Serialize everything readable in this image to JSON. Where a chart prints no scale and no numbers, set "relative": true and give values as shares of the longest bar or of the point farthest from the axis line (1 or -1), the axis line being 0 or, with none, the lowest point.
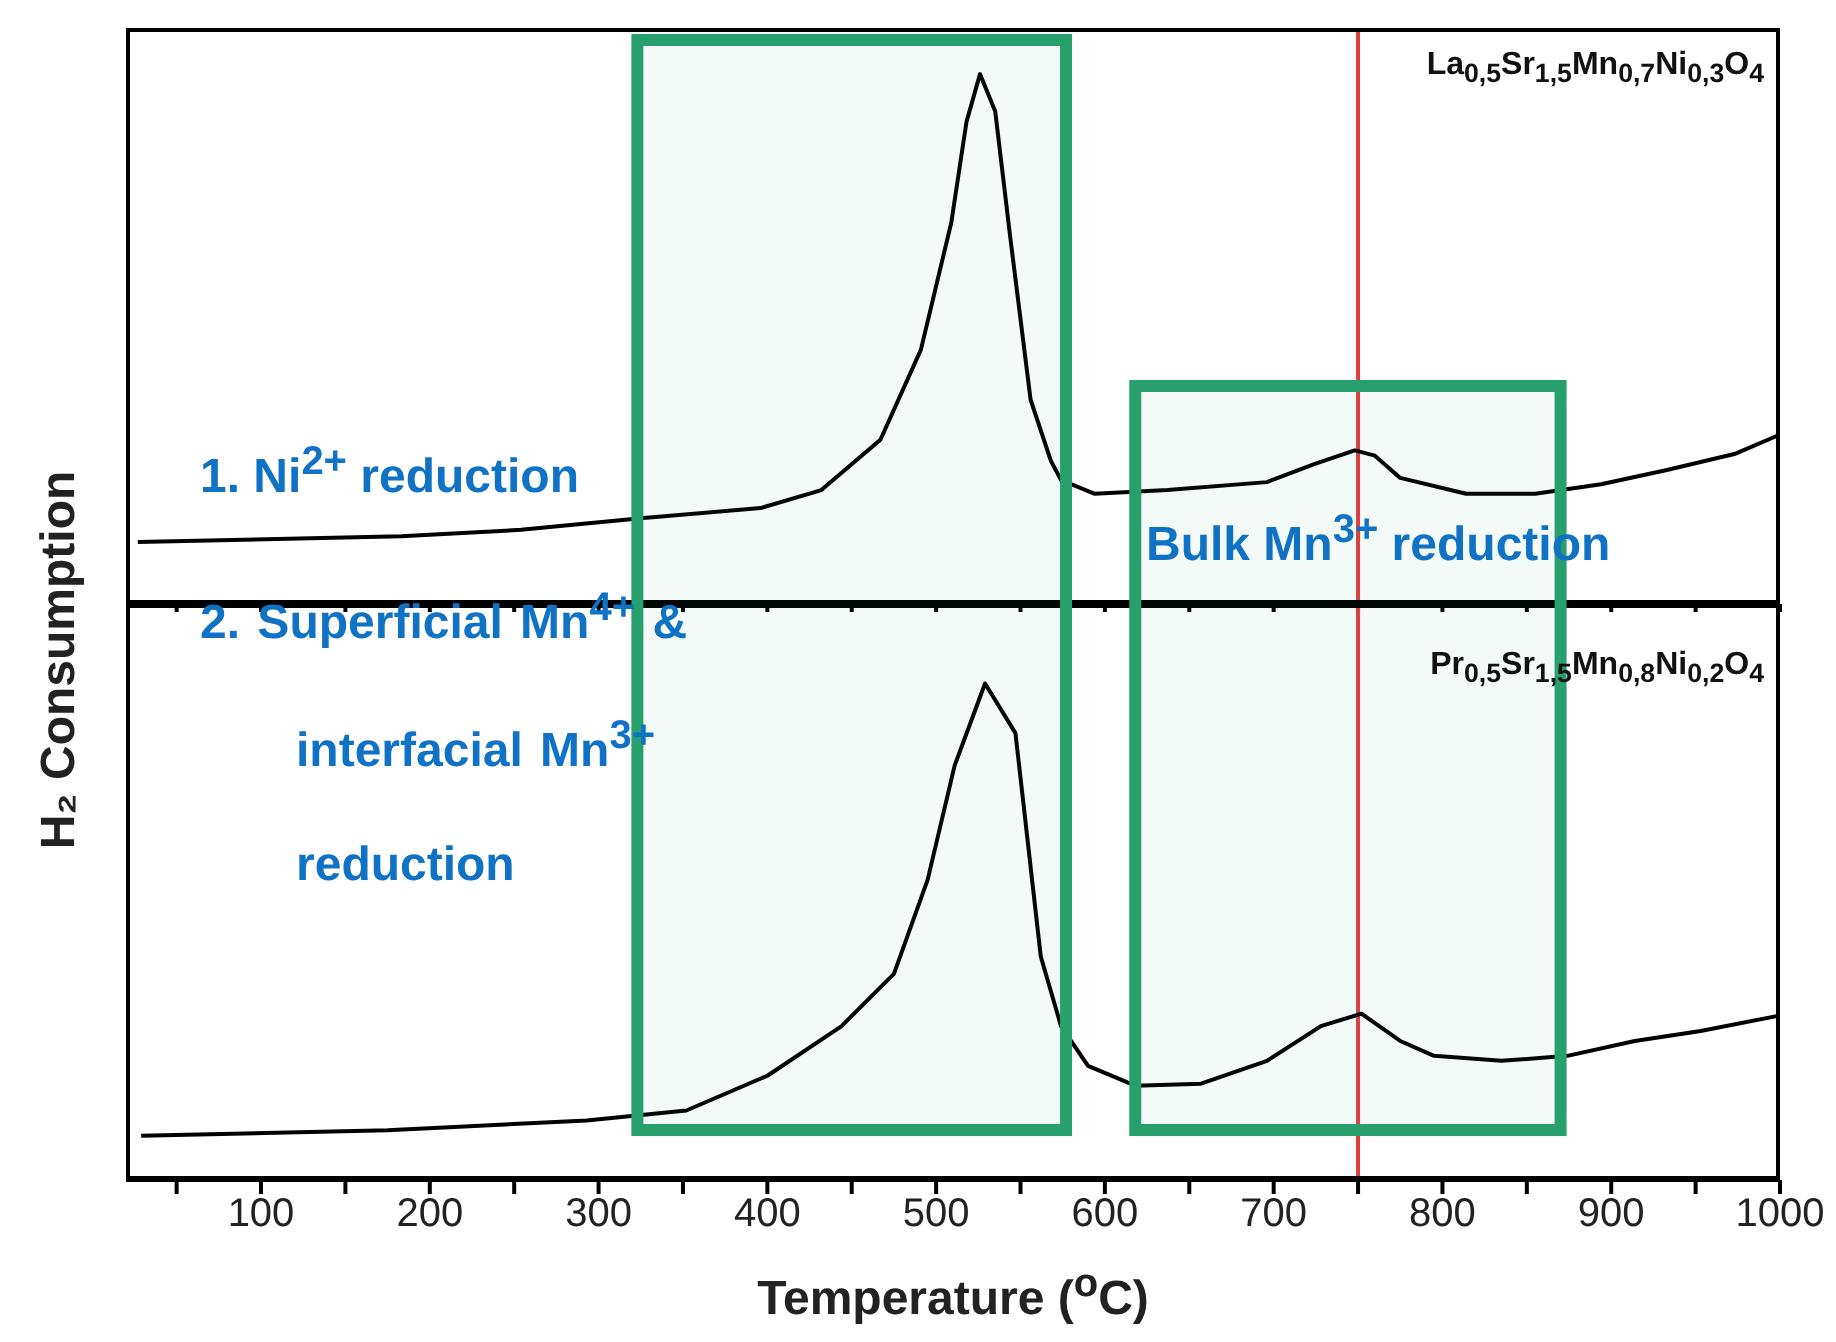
{
  "chart_data": [
    {
      "type": "line",
      "relative": true,
      "ylabel": "H₂ Consumption",
      "xlim": [
        20,
        1000
      ],
      "xticks": [
        {
          "value": 50,
          "label": null
        },
        {
          "value": 100,
          "label": null
        },
        {
          "value": 150,
          "label": null
        },
        {
          "value": 200,
          "label": null
        },
        {
          "value": 250,
          "label": null
        },
        {
          "value": 300,
          "label": null
        },
        {
          "value": 350,
          "label": null
        },
        {
          "value": 400,
          "label": null
        },
        {
          "value": 450,
          "label": null
        },
        {
          "value": 500,
          "label": null
        },
        {
          "value": 550,
          "label": null
        },
        {
          "value": 600,
          "label": null
        },
        {
          "value": 650,
          "label": null
        },
        {
          "value": 700,
          "label": null
        },
        {
          "value": 750,
          "label": null
        },
        {
          "value": 800,
          "label": null
        },
        {
          "value": 850,
          "label": null
        },
        {
          "value": 900,
          "label": null
        },
        {
          "value": 950,
          "label": null
        },
        {
          "value": 1000,
          "label": null
        }
      ],
      "tick_labels": false,
      "grid": false,
      "legend": false,
      "marker": "none",
      "series": [
        {
          "color": "#000000",
          "x": [
            27,
            183,
            254,
            325,
            396,
            432,
            467,
            491,
            509,
            518,
            526,
            535,
            544,
            556,
            568,
            574,
            594,
            637,
            696,
            724,
            748,
            760,
            775,
            814,
            855,
            894,
            933,
            973,
            998
          ],
          "values": [
            0.117,
            0.128,
            0.14,
            0.162,
            0.181,
            0.215,
            0.31,
            0.48,
            0.72,
            0.91,
            1,
            0.93,
            0.69,
            0.385,
            0.27,
            0.234,
            0.208,
            0.215,
            0.23,
            0.264,
            0.29,
            0.28,
            0.238,
            0.208,
            0.208,
            0.226,
            0.253,
            0.283,
            0.317
          ]
        }
      ],
      "ref_lines": [
        {
          "axis": "x",
          "value": 750,
          "color": "#e03c3c"
        }
      ],
      "bands": [
        {
          "axis": "x",
          "from": 323,
          "to": 577,
          "color": "#27a06e"
        },
        {
          "axis": "x",
          "from": 618,
          "to": 870,
          "color": "#27a06e"
        }
      ],
      "annotations": [
        "La$_{0,5}$Sr$_{1,5}$Mn$_{0,7}$Ni$_{0,3}$O$_{4}$",
        "1. Ni$^{2+}$ reduction",
        "2. Superficial Mn$^{4+}$ & interfacial Mn$^{3+}$ reduction",
        "Bulk Mn$^{3+}$ reduction"
      ]
    },
    {
      "type": "line",
      "relative": true,
      "xlabel": "Temperature ($^{o}$C)",
      "xlim": [
        20,
        1000
      ],
      "xticks": [
        {
          "value": 50,
          "label": null
        },
        100,
        {
          "value": 150,
          "label": null
        },
        200,
        {
          "value": 250,
          "label": null
        },
        300,
        {
          "value": 350,
          "label": null
        },
        400,
        {
          "value": 450,
          "label": null
        },
        500,
        {
          "value": 550,
          "label": null
        },
        600,
        {
          "value": 650,
          "label": null
        },
        700,
        {
          "value": 750,
          "label": null
        },
        800,
        {
          "value": 850,
          "label": null
        },
        900,
        {
          "value": 950,
          "label": null
        },
        1000
      ],
      "tick_labels": "x",
      "grid": false,
      "legend": false,
      "marker": "none",
      "series": [
        {
          "color": "#000000",
          "x": [
            29,
            175,
            293,
            352,
            400,
            444,
            475,
            495,
            511,
            529,
            547,
            562,
            574,
            590,
            618,
            657,
            696,
            728,
            752,
            775,
            795,
            835,
            874,
            914,
            953,
            998
          ],
          "values": [
            0.089,
            0.1,
            0.12,
            0.14,
            0.21,
            0.31,
            0.415,
            0.605,
            0.835,
            1,
            0.9,
            0.45,
            0.31,
            0.23,
            0.19,
            0.194,
            0.24,
            0.31,
            0.335,
            0.28,
            0.25,
            0.24,
            0.25,
            0.28,
            0.3,
            0.33
          ]
        }
      ],
      "ref_lines": [
        {
          "axis": "x",
          "value": 750,
          "color": "#e03c3c"
        }
      ],
      "annotations": [
        "Pr$_{0,5}$Sr$_{1,5}$Mn$_{0,8}$Ni$_{0,2}$O$_{4}$"
      ]
    }
  ]
}
